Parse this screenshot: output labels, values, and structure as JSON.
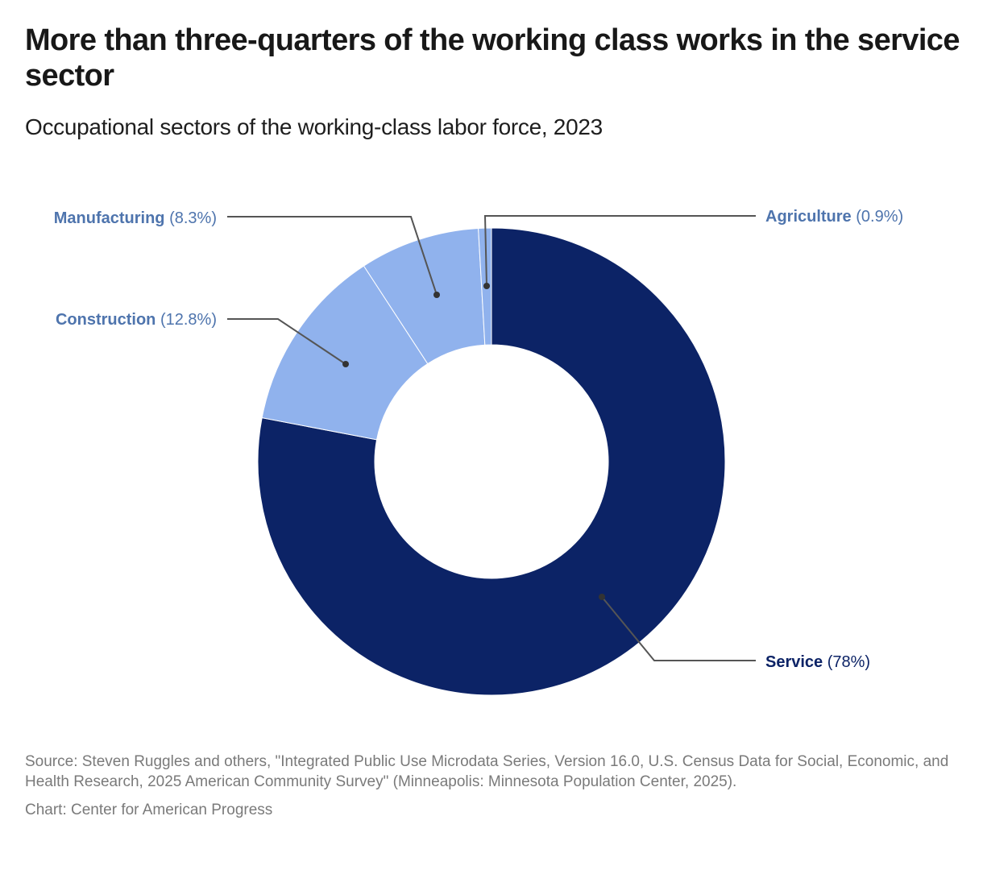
{
  "header": {
    "title": "More than three-quarters of the working class works in the service sector",
    "subtitle": "Occupational sectors of the working-class labor force, 2023"
  },
  "colors": {
    "service": "#0c2366",
    "other_sectors": "#90b2ed",
    "label_light": "#4e74ad",
    "label_dark": "#0c2366",
    "leader_line": "#555555",
    "footer_text": "#7a7a7a"
  },
  "labels": {
    "service": {
      "name": "Service",
      "value": "(78%)"
    },
    "construction": {
      "name": "Construction",
      "value": "(12.8%)"
    },
    "manufacturing": {
      "name": "Manufacturing",
      "value": "(8.3%)"
    },
    "agriculture": {
      "name": "Agriculture",
      "value": "(0.9%)"
    }
  },
  "footer": {
    "source": "Source: Steven Ruggles and others, \"Integrated Public Use Microdata Series, Version 16.0, U.S. Census Data for Social, Economic, and Health Research, 2025 American Community Survey\" (Minneapolis: Minnesota Population Center, 2025).",
    "credit": "Chart: Center for American Progress"
  },
  "chart_data": {
    "type": "pie",
    "variant": "donut",
    "title": "More than three-quarters of the working class works in the service sector",
    "subtitle": "Occupational sectors of the working-class labor force, 2023",
    "categories": [
      "Service",
      "Construction",
      "Manufacturing",
      "Agriculture"
    ],
    "values": [
      78,
      12.8,
      8.3,
      0.9
    ],
    "unit": "%",
    "colors": [
      "#0c2366",
      "#90b2ed",
      "#90b2ed",
      "#90b2ed"
    ],
    "start_angle_deg": 0,
    "direction": "clockwise",
    "inner_radius_ratio": 0.5,
    "legend": "none (direct labels with leader lines)",
    "source": "Steven Ruggles and others, IPUMS Version 16.0, 2025 American Community Survey",
    "credit": "Center for American Progress"
  }
}
